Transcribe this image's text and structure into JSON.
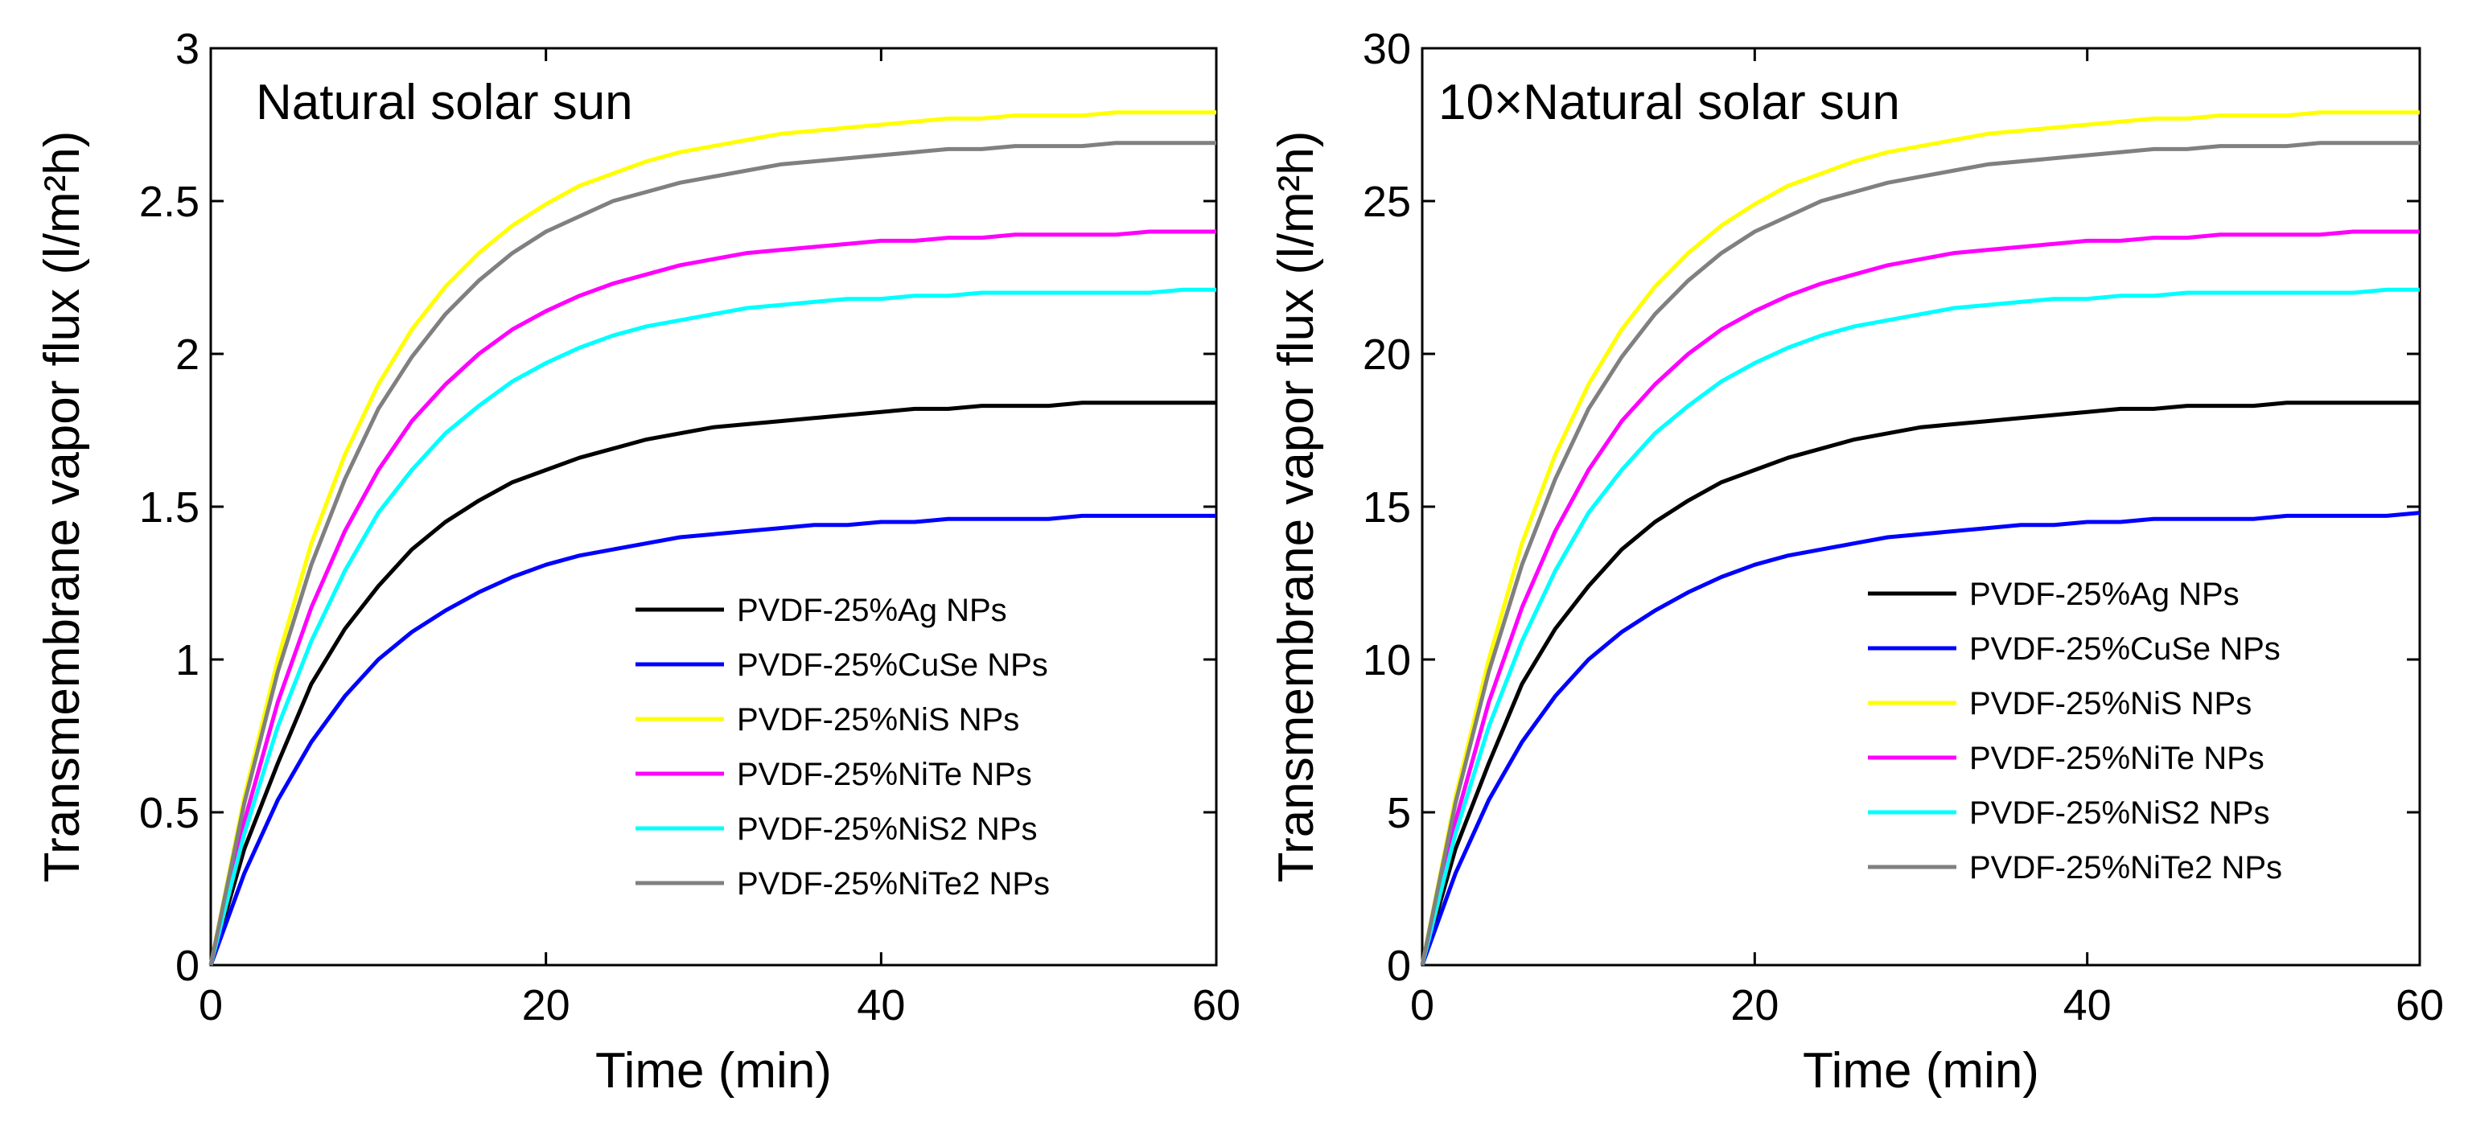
{
  "chart_data": [
    {
      "type": "line",
      "annotation": "Natural solar sun",
      "xlabel": "Time (min)",
      "ylabel": "Transmembrane vapor flux (l/m²h)",
      "xlim": [
        0,
        60
      ],
      "ylim": [
        0,
        3
      ],
      "xticks": [
        0,
        20,
        40,
        60
      ],
      "yticks": [
        0,
        0.5,
        1,
        1.5,
        2,
        2.5,
        3
      ],
      "ytick_labels": [
        "0",
        "0.5",
        "1",
        "1.5",
        "2",
        "2.5",
        "3"
      ],
      "grid": false,
      "legend_position": "lower-right",
      "x": [
        0,
        2,
        4,
        6,
        8,
        10,
        12,
        14,
        16,
        18,
        20,
        22,
        24,
        26,
        28,
        30,
        32,
        34,
        36,
        38,
        40,
        42,
        44,
        46,
        48,
        50,
        52,
        54,
        56,
        58,
        60
      ],
      "series": [
        {
          "name": "PVDF-25%Ag NPs",
          "color": "#000000",
          "values": [
            0,
            0.38,
            0.66,
            0.92,
            1.1,
            1.24,
            1.36,
            1.45,
            1.52,
            1.58,
            1.62,
            1.66,
            1.69,
            1.72,
            1.74,
            1.76,
            1.77,
            1.78,
            1.79,
            1.8,
            1.81,
            1.82,
            1.82,
            1.83,
            1.83,
            1.83,
            1.84,
            1.84,
            1.84,
            1.84,
            1.84
          ]
        },
        {
          "name": "PVDF-25%CuSe NPs",
          "color": "#0000ff",
          "values": [
            0,
            0.3,
            0.54,
            0.73,
            0.88,
            1.0,
            1.09,
            1.16,
            1.22,
            1.27,
            1.31,
            1.34,
            1.36,
            1.38,
            1.4,
            1.41,
            1.42,
            1.43,
            1.44,
            1.44,
            1.45,
            1.45,
            1.46,
            1.46,
            1.46,
            1.46,
            1.47,
            1.47,
            1.47,
            1.47,
            1.47
          ]
        },
        {
          "name": "PVDF-25%NiS NPs",
          "color": "#ffff00",
          "values": [
            0,
            0.55,
            1.0,
            1.38,
            1.67,
            1.9,
            2.08,
            2.22,
            2.33,
            2.42,
            2.49,
            2.55,
            2.59,
            2.63,
            2.66,
            2.68,
            2.7,
            2.72,
            2.73,
            2.74,
            2.75,
            2.76,
            2.77,
            2.77,
            2.78,
            2.78,
            2.78,
            2.79,
            2.79,
            2.79,
            2.79
          ]
        },
        {
          "name": "PVDF-25%NiTe NPs",
          "color": "#ff00ff",
          "values": [
            0,
            0.47,
            0.86,
            1.17,
            1.42,
            1.62,
            1.78,
            1.9,
            2.0,
            2.08,
            2.14,
            2.19,
            2.23,
            2.26,
            2.29,
            2.31,
            2.33,
            2.34,
            2.35,
            2.36,
            2.37,
            2.37,
            2.38,
            2.38,
            2.39,
            2.39,
            2.39,
            2.39,
            2.4,
            2.4,
            2.4
          ]
        },
        {
          "name": "PVDF-25%NiS2 NPs",
          "color": "#00ffff",
          "values": [
            0,
            0.43,
            0.78,
            1.06,
            1.29,
            1.48,
            1.62,
            1.74,
            1.83,
            1.91,
            1.97,
            2.02,
            2.06,
            2.09,
            2.11,
            2.13,
            2.15,
            2.16,
            2.17,
            2.18,
            2.18,
            2.19,
            2.19,
            2.2,
            2.2,
            2.2,
            2.2,
            2.2,
            2.2,
            2.21,
            2.21
          ]
        },
        {
          "name": "PVDF-25%NiTe2 NPs",
          "color": "#808080",
          "values": [
            0,
            0.53,
            0.96,
            1.31,
            1.59,
            1.82,
            1.99,
            2.13,
            2.24,
            2.33,
            2.4,
            2.45,
            2.5,
            2.53,
            2.56,
            2.58,
            2.6,
            2.62,
            2.63,
            2.64,
            2.65,
            2.66,
            2.67,
            2.67,
            2.68,
            2.68,
            2.68,
            2.69,
            2.69,
            2.69,
            2.69
          ]
        }
      ]
    },
    {
      "type": "line",
      "annotation": "10×Natural solar sun",
      "xlabel": "Time (min)",
      "ylabel": "Transmembrane vapor flux (l/m²h)",
      "xlim": [
        0,
        60
      ],
      "ylim": [
        0,
        30
      ],
      "xticks": [
        0,
        20,
        40,
        60
      ],
      "yticks": [
        0,
        5,
        10,
        15,
        20,
        25,
        30
      ],
      "ytick_labels": [
        "0",
        "5",
        "10",
        "15",
        "20",
        "25",
        "30"
      ],
      "grid": false,
      "legend_position": "lower-right",
      "x": [
        0,
        2,
        4,
        6,
        8,
        10,
        12,
        14,
        16,
        18,
        20,
        22,
        24,
        26,
        28,
        30,
        32,
        34,
        36,
        38,
        40,
        42,
        44,
        46,
        48,
        50,
        52,
        54,
        56,
        58,
        60
      ],
      "series": [
        {
          "name": "PVDF-25%Ag NPs",
          "color": "#000000",
          "values": [
            0,
            3.8,
            6.6,
            9.2,
            11.0,
            12.4,
            13.6,
            14.5,
            15.2,
            15.8,
            16.2,
            16.6,
            16.9,
            17.2,
            17.4,
            17.6,
            17.7,
            17.8,
            17.9,
            18.0,
            18.1,
            18.2,
            18.2,
            18.3,
            18.3,
            18.3,
            18.4,
            18.4,
            18.4,
            18.4,
            18.4
          ]
        },
        {
          "name": "PVDF-25%CuSe NPs",
          "color": "#0000ff",
          "values": [
            0,
            3.0,
            5.4,
            7.3,
            8.8,
            10.0,
            10.9,
            11.6,
            12.2,
            12.7,
            13.1,
            13.4,
            13.6,
            13.8,
            14.0,
            14.1,
            14.2,
            14.3,
            14.4,
            14.4,
            14.5,
            14.5,
            14.6,
            14.6,
            14.6,
            14.6,
            14.7,
            14.7,
            14.7,
            14.7,
            14.8
          ]
        },
        {
          "name": "PVDF-25%NiS NPs",
          "color": "#ffff00",
          "values": [
            0,
            5.5,
            10.0,
            13.8,
            16.7,
            19.0,
            20.8,
            22.2,
            23.3,
            24.2,
            24.9,
            25.5,
            25.9,
            26.3,
            26.6,
            26.8,
            27.0,
            27.2,
            27.3,
            27.4,
            27.5,
            27.6,
            27.7,
            27.7,
            27.8,
            27.8,
            27.8,
            27.9,
            27.9,
            27.9,
            27.9
          ]
        },
        {
          "name": "PVDF-25%NiTe NPs",
          "color": "#ff00ff",
          "values": [
            0,
            4.7,
            8.6,
            11.7,
            14.2,
            16.2,
            17.8,
            19.0,
            20.0,
            20.8,
            21.4,
            21.9,
            22.3,
            22.6,
            22.9,
            23.1,
            23.3,
            23.4,
            23.5,
            23.6,
            23.7,
            23.7,
            23.8,
            23.8,
            23.9,
            23.9,
            23.9,
            23.9,
            24.0,
            24.0,
            24.0
          ]
        },
        {
          "name": "PVDF-25%NiS2 NPs",
          "color": "#00ffff",
          "values": [
            0,
            4.3,
            7.8,
            10.6,
            12.9,
            14.8,
            16.2,
            17.4,
            18.3,
            19.1,
            19.7,
            20.2,
            20.6,
            20.9,
            21.1,
            21.3,
            21.5,
            21.6,
            21.7,
            21.8,
            21.8,
            21.9,
            21.9,
            22.0,
            22.0,
            22.0,
            22.0,
            22.0,
            22.0,
            22.1,
            22.1
          ]
        },
        {
          "name": "PVDF-25%NiTe2 NPs",
          "color": "#808080",
          "values": [
            0,
            5.3,
            9.6,
            13.1,
            15.9,
            18.2,
            19.9,
            21.3,
            22.4,
            23.3,
            24.0,
            24.5,
            25.0,
            25.3,
            25.6,
            25.8,
            26.0,
            26.2,
            26.3,
            26.4,
            26.5,
            26.6,
            26.7,
            26.7,
            26.8,
            26.8,
            26.8,
            26.9,
            26.9,
            26.9,
            26.9
          ]
        }
      ]
    }
  ]
}
